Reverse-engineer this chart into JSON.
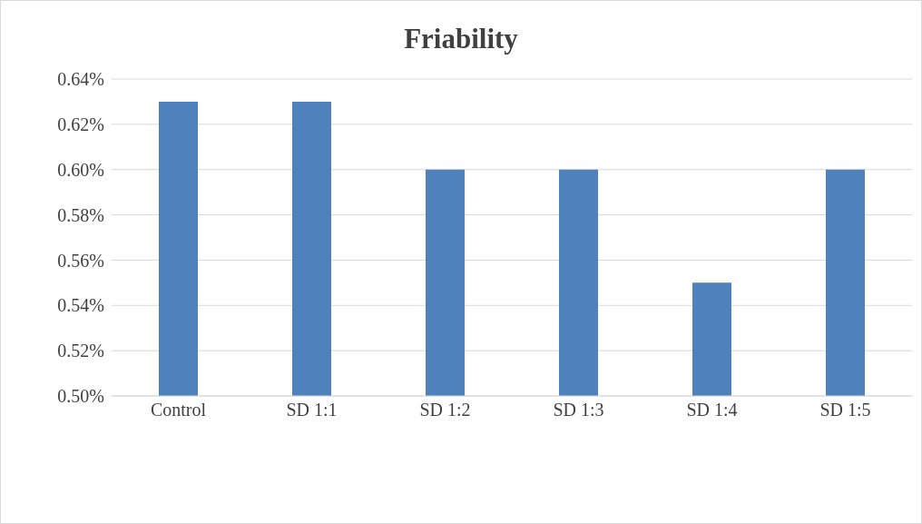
{
  "chart_data": {
    "type": "bar",
    "title": "Friability",
    "categories": [
      "Control",
      "SD 1:1",
      "SD 1:2",
      "SD 1:3",
      "SD 1:4",
      "SD 1:5"
    ],
    "values": [
      0.63,
      0.63,
      0.6,
      0.6,
      0.55,
      0.6
    ],
    "color": "#4f81bd",
    "ylim": [
      0.5,
      0.64
    ],
    "yticks": [
      {
        "value": 0.5,
        "label": "0.50%"
      },
      {
        "value": 0.52,
        "label": "0.52%"
      },
      {
        "value": 0.54,
        "label": "0.54%"
      },
      {
        "value": 0.56,
        "label": "0.56%"
      },
      {
        "value": 0.58,
        "label": "0.58%"
      },
      {
        "value": 0.6,
        "label": "0.60%"
      },
      {
        "value": 0.62,
        "label": "0.62%"
      },
      {
        "value": 0.64,
        "label": "0.64%"
      }
    ],
    "grid": "y"
  }
}
